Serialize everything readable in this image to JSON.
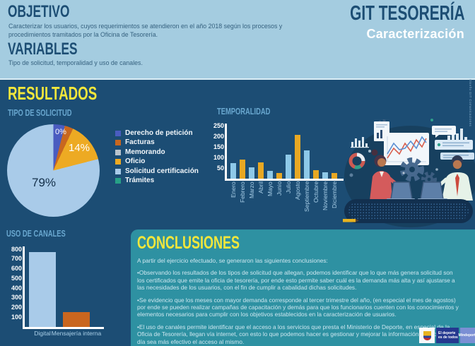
{
  "colors": {
    "band_light_blue": "#a4cce0",
    "background_navy": "#1c4d74",
    "panel_teal": "#2e91a2",
    "accent_yellow": "#f3e73b",
    "heading_navy": "#1d4e74",
    "subheading_blue": "#69a7cf"
  },
  "header": {
    "objetivo_title": "OBJETIVO",
    "objetivo_text": "Caracterizar los usuarios, cuyos requerimientos se atendieron en el año 2018 según los procesos y procedimientos tramitados por la Oficina de Tesorería.",
    "variables_title": "VARIABLES",
    "variables_text": "Tipo de solicitud, temporalidad y uso de canales.",
    "brand_title": "GIT TESORERÍA",
    "brand_subtitle": "Caracterización"
  },
  "results_title": "RESULTADOS",
  "watermark": "Diseño GIT Comunicaciones",
  "chart_data": [
    {
      "id": "tipo_solicitud",
      "type": "pie",
      "title": "TIPO DE SOLICITUD",
      "labels": [
        "Derecho de petición",
        "Facturas",
        "Memorando",
        "Oficio",
        "Solicitud certificación",
        "Trámites"
      ],
      "values": [
        4,
        3,
        0,
        14,
        79,
        0
      ],
      "colors": [
        "#4a5cc0",
        "#c8671f",
        "#b9c4cd",
        "#edaa23",
        "#a9cbe9",
        "#27a186"
      ],
      "percent_labels": [
        "0%",
        "14%",
        "79%"
      ],
      "legend_position": "right"
    },
    {
      "id": "temporalidad",
      "type": "bar",
      "title": "TEMPORALIDAD",
      "categories": [
        "Enero",
        "Febrero",
        "Marzo",
        "Abril",
        "Mayo",
        "Junio",
        "Julio",
        "Agosto",
        "Septiembre",
        "Octubre",
        "Noviembre",
        "Diciembre"
      ],
      "values": [
        75,
        90,
        55,
        78,
        38,
        28,
        115,
        208,
        132,
        40,
        30,
        28
      ],
      "colors": [
        "#8ec9e8",
        "#e8a823"
      ],
      "yticks": [
        50,
        100,
        150,
        200,
        250
      ],
      "ylim": [
        0,
        260
      ],
      "grid": false
    },
    {
      "id": "uso_canales",
      "type": "bar",
      "title": "USO DE CANALES",
      "categories": [
        "Digital",
        "Mensajería interna"
      ],
      "values": [
        770,
        155
      ],
      "colors": [
        "#a9cbe9",
        "#c9661f"
      ],
      "yticks": [
        100,
        200,
        300,
        400,
        500,
        600,
        700,
        800
      ],
      "ylim": [
        0,
        830
      ],
      "grid": false
    }
  ],
  "conclusions": {
    "title": "CONCLUSIONES",
    "intro": "A partir del ejercicio efectuado, se generaron las siguientes conclusiones:",
    "bullets": [
      "•Observando los resultados de los tipos de solicitud que allegan, podemos identificar que lo que más genera solicitud son los certificados que emite la oficia de tesorería, por ende esto permite saber cuál es la demanda más alta y así ajustarse a las necesidades de los usuarios, con el fin de cumplir a cabalidad dichas solicitudes.",
      "•Se evidencio que los meses con mayor demanda corresponde al tercer trimestre del año, (en especial el mes de agostos) por ende se pueden realizar campañas de capacitación y demás para que los funcionarios cuenten con los conocimientos y elementos necesarios para cumplir con los objetivos establecidos en la caracterización de usuarios.",
      "•El uso de canales permite identificar que el acceso a los servicios que presta el Ministerio de Deporte, en especial de la Oficia de Tesorería, llegan vía internet, con esto lo que podemos hacer es gestionar y mejorar la información para que cada día sea más efectivo el acceso al mismo."
    ]
  },
  "footer_logo": {
    "tagline_line1": "El deporte",
    "tagline_line2": "es de todos",
    "brand": "Mindeporte"
  }
}
